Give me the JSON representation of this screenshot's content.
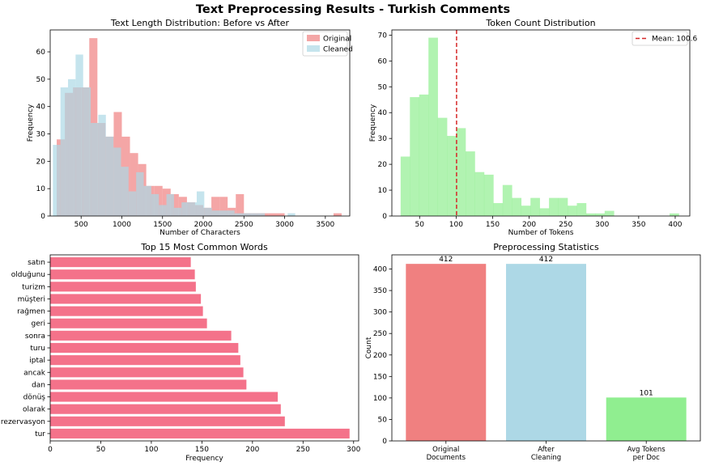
{
  "figure": {
    "title": "Text Preprocessing Results - Turkish Comments"
  },
  "chart_data": [
    {
      "id": "hist-length",
      "type": "bar",
      "subtype": "overlapping-histogram",
      "title": "Text Length Distribution: Before vs After",
      "xlabel": "Number of Characters",
      "ylabel": "Frequency",
      "xlim": [
        120,
        3800
      ],
      "ylim": [
        0,
        68
      ],
      "xticks": [
        500,
        1000,
        1500,
        2000,
        2500,
        3000,
        3500
      ],
      "yticks": [
        0,
        10,
        20,
        30,
        40,
        50,
        60
      ],
      "legend_position": "top-right",
      "series": [
        {
          "name": "Original",
          "color": "#f08080",
          "bin_width": 100,
          "bins": [
            [
              200,
              28
            ],
            [
              300,
              45
            ],
            [
              400,
              47
            ],
            [
              500,
              47
            ],
            [
              600,
              65
            ],
            [
              700,
              34
            ],
            [
              800,
              29
            ],
            [
              900,
              38
            ],
            [
              1000,
              29
            ],
            [
              1100,
              23
            ],
            [
              1200,
              19
            ],
            [
              1300,
              11
            ],
            [
              1400,
              11
            ],
            [
              1500,
              10
            ],
            [
              1600,
              8
            ],
            [
              1700,
              7
            ],
            [
              1800,
              5
            ],
            [
              1900,
              4
            ],
            [
              2000,
              3
            ],
            [
              2100,
              7
            ],
            [
              2200,
              7
            ],
            [
              2300,
              3
            ],
            [
              2400,
              8
            ],
            [
              2500,
              1
            ],
            [
              2600,
              1
            ],
            [
              2700,
              1
            ],
            [
              2800,
              1
            ],
            [
              2900,
              1
            ],
            [
              3600,
              1
            ]
          ]
        },
        {
          "name": "Cleaned",
          "color": "#add8e6",
          "bin_width": 93,
          "bins": [
            [
              153,
              26
            ],
            [
              246,
              47
            ],
            [
              339,
              50
            ],
            [
              432,
              59
            ],
            [
              525,
              47
            ],
            [
              618,
              34
            ],
            [
              711,
              37
            ],
            [
              804,
              29
            ],
            [
              897,
              25
            ],
            [
              990,
              18
            ],
            [
              1083,
              9
            ],
            [
              1176,
              16
            ],
            [
              1269,
              11
            ],
            [
              1362,
              8
            ],
            [
              1455,
              4
            ],
            [
              1548,
              8
            ],
            [
              1641,
              3
            ],
            [
              1734,
              5
            ],
            [
              1827,
              5
            ],
            [
              1920,
              9
            ],
            [
              2013,
              3
            ],
            [
              2106,
              2
            ],
            [
              2199,
              2
            ],
            [
              2292,
              2
            ],
            [
              2385,
              1
            ],
            [
              2478,
              1
            ],
            [
              2571,
              1
            ],
            [
              2664,
              1
            ],
            [
              3037,
              1
            ]
          ]
        }
      ]
    },
    {
      "id": "hist-tokens",
      "type": "bar",
      "subtype": "histogram",
      "title": "Token Count Distribution",
      "xlabel": "Number of Tokens",
      "ylabel": "Frequency",
      "xlim": [
        12,
        420
      ],
      "ylim": [
        0,
        72
      ],
      "xticks": [
        50,
        100,
        150,
        200,
        250,
        300,
        350,
        400
      ],
      "yticks": [
        0,
        10,
        20,
        30,
        40,
        50,
        60,
        70
      ],
      "legend_position": "top-right",
      "color": "#90ee90",
      "bin_width": 12.7,
      "bins": [
        [
          24,
          23
        ],
        [
          36.7,
          46
        ],
        [
          49.4,
          47
        ],
        [
          62.1,
          69
        ],
        [
          74.8,
          38
        ],
        [
          87.5,
          31
        ],
        [
          100.2,
          34
        ],
        [
          112.9,
          25
        ],
        [
          125.6,
          17
        ],
        [
          138.3,
          16
        ],
        [
          151,
          5
        ],
        [
          163.7,
          12
        ],
        [
          176.4,
          7
        ],
        [
          189.1,
          4
        ],
        [
          201.8,
          7
        ],
        [
          214.5,
          3
        ],
        [
          227.2,
          7
        ],
        [
          239.9,
          7
        ],
        [
          252.6,
          4
        ],
        [
          265.3,
          5
        ],
        [
          278,
          1
        ],
        [
          290.7,
          1
        ],
        [
          303.4,
          2
        ],
        [
          392.3,
          1
        ]
      ],
      "mean": {
        "value": 100.6,
        "label": "Mean: 100.6",
        "color": "#d62728"
      }
    },
    {
      "id": "top-words",
      "type": "bar",
      "orientation": "horizontal",
      "title": "Top 15 Most Common Words",
      "xlabel": "Frequency",
      "xlim": [
        0,
        305
      ],
      "xticks": [
        0,
        50,
        100,
        150,
        200,
        250,
        300
      ],
      "color": "#f4728a",
      "categories": [
        "tur",
        "rezervasyon",
        "olarak",
        "dönüş",
        "dan",
        "ancak",
        "iptal",
        "turu",
        "sonra",
        "geri",
        "rağmen",
        "müşteri",
        "turizm",
        "olduğunu",
        "satın"
      ],
      "values": [
        296,
        232,
        228,
        225,
        194,
        191,
        188,
        186,
        179,
        155,
        151,
        149,
        144,
        143,
        139
      ]
    },
    {
      "id": "prep-stats",
      "type": "bar",
      "title": "Preprocessing Statistics",
      "ylabel": "Count",
      "ylim": [
        0,
        433
      ],
      "yticks": [
        0,
        50,
        100,
        150,
        200,
        250,
        300,
        350,
        400
      ],
      "categories": [
        "Original\nDocuments",
        "After\nCleaning",
        "Avg Tokens\nper Doc"
      ],
      "values": [
        412,
        412,
        101
      ],
      "value_labels": [
        "412",
        "412",
        "101"
      ],
      "colors": [
        "#f08080",
        "#add8e6",
        "#90ee90"
      ]
    }
  ]
}
